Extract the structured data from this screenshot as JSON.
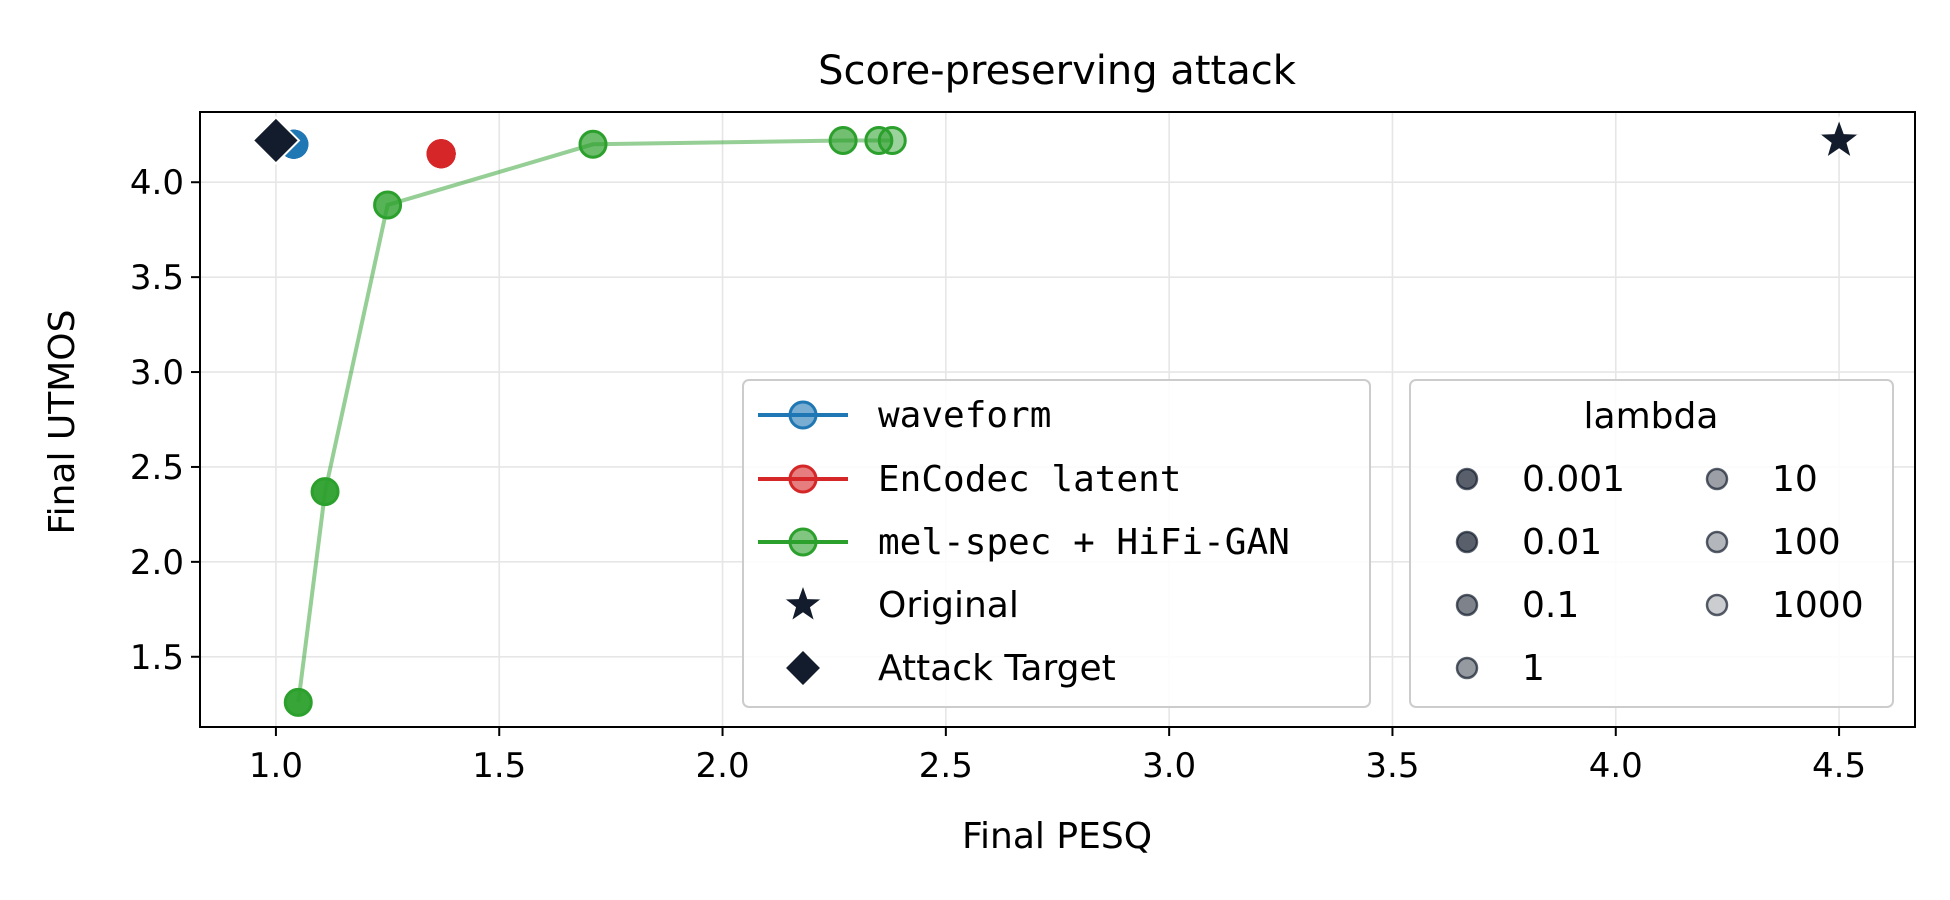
{
  "chart_data": {
    "type": "scatter",
    "title": "Score-preserving attack",
    "xlabel": "Final PESQ",
    "ylabel": "Final UTMOS",
    "xlim": [
      0.83,
      4.67
    ],
    "ylim": [
      1.13,
      4.37
    ],
    "xticks": [
      "1.0",
      "1.5",
      "2.0",
      "2.5",
      "3.0",
      "3.5",
      "4.0",
      "4.5"
    ],
    "yticks": [
      "1.5",
      "2.0",
      "2.5",
      "3.0",
      "3.5",
      "4.0"
    ],
    "grid": true,
    "series": [
      {
        "name": "waveform",
        "color": "#1f77b4",
        "points": [
          {
            "lambda": "0.001",
            "x": 1.04,
            "y": 4.2
          },
          {
            "lambda": "0.01",
            "x": 1.04,
            "y": 4.2
          },
          {
            "lambda": "0.1",
            "x": 1.04,
            "y": 4.2
          },
          {
            "lambda": "1",
            "x": 1.04,
            "y": 4.2
          },
          {
            "lambda": "10",
            "x": 1.04,
            "y": 4.2
          },
          {
            "lambda": "100",
            "x": 1.04,
            "y": 4.2
          },
          {
            "lambda": "1000",
            "x": 1.04,
            "y": 4.2
          }
        ]
      },
      {
        "name": "EnCodec latent",
        "color": "#d62728",
        "points": [
          {
            "lambda": "0.001",
            "x": 1.37,
            "y": 4.15
          },
          {
            "lambda": "0.01",
            "x": 1.37,
            "y": 4.15
          },
          {
            "lambda": "0.1",
            "x": 1.37,
            "y": 4.15
          },
          {
            "lambda": "1",
            "x": 1.37,
            "y": 4.15
          },
          {
            "lambda": "10",
            "x": 1.37,
            "y": 4.15
          },
          {
            "lambda": "100",
            "x": 1.37,
            "y": 4.15
          },
          {
            "lambda": "1000",
            "x": 1.37,
            "y": 4.15
          }
        ]
      },
      {
        "name": "mel-spec + HiFi-GAN",
        "color": "#2ca02c",
        "points": [
          {
            "lambda": "0.001",
            "x": 1.05,
            "y": 1.26
          },
          {
            "lambda": "0.01",
            "x": 1.11,
            "y": 2.37
          },
          {
            "lambda": "0.1",
            "x": 1.25,
            "y": 3.88
          },
          {
            "lambda": "1",
            "x": 1.71,
            "y": 4.2
          },
          {
            "lambda": "10",
            "x": 2.27,
            "y": 4.22
          },
          {
            "lambda": "100",
            "x": 2.35,
            "y": 4.22
          },
          {
            "lambda": "1000",
            "x": 2.38,
            "y": 4.22
          }
        ]
      }
    ],
    "reference_points": [
      {
        "name": "Original",
        "marker": "star",
        "x": 4.5,
        "y": 4.22,
        "color": "#131c2c"
      },
      {
        "name": "Attack Target",
        "marker": "diamond",
        "x": 1.0,
        "y": 4.22,
        "color": "#131c2c"
      }
    ],
    "legend_methods": {
      "placement": "lower-center",
      "entries": [
        "waveform",
        "EnCodec latent",
        "mel-spec + HiFi-GAN",
        "Original",
        "Attack Target"
      ]
    },
    "legend_lambda": {
      "title": "lambda",
      "placement": "lower-right",
      "values": [
        "0.001",
        "0.01",
        "0.1",
        "1",
        "10",
        "100",
        "1000"
      ],
      "alphas": [
        0.7,
        0.7,
        0.55,
        0.45,
        0.42,
        0.32,
        0.22
      ]
    }
  }
}
